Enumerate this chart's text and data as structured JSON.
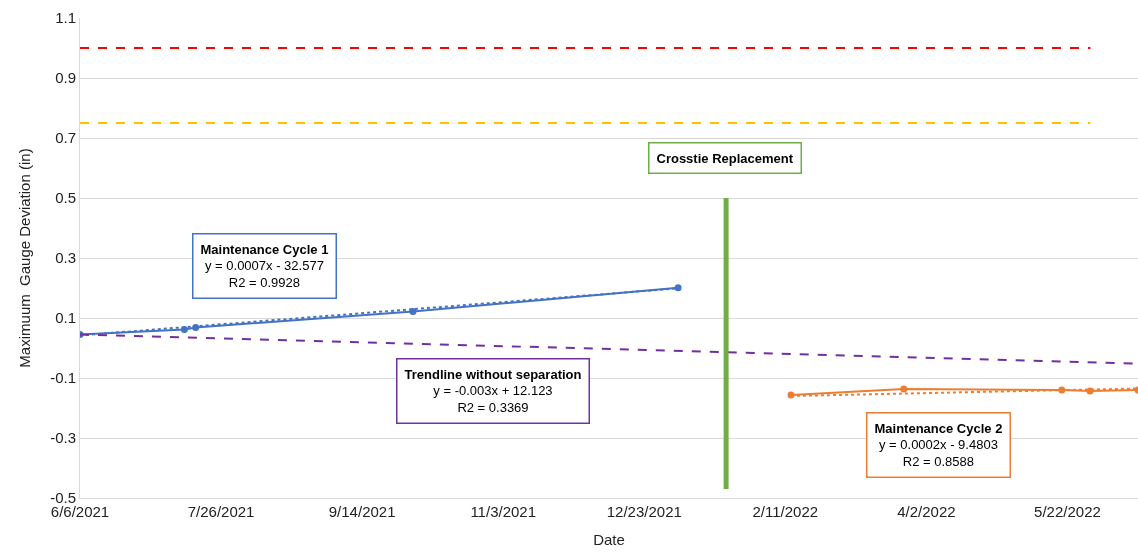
{
  "chart_data": {
    "type": "line",
    "xlabel": "Date",
    "ylabel": "Maximuum  Gauge Deviation (in)",
    "xlim": [
      "2021-06-06",
      "2022-06-16"
    ],
    "xticks": [
      {
        "value": "2021-06-06",
        "label": "6/6/2021"
      },
      {
        "value": "2021-07-26",
        "label": "7/26/2021"
      },
      {
        "value": "2021-09-14",
        "label": "9/14/2021"
      },
      {
        "value": "2021-11-03",
        "label": "11/3/2021"
      },
      {
        "value": "2021-12-23",
        "label": "12/23/2021"
      },
      {
        "value": "2022-02-11",
        "label": "2/11/2022"
      },
      {
        "value": "2022-04-02",
        "label": "4/2/2022"
      },
      {
        "value": "2022-05-22",
        "label": "5/22/2022"
      }
    ],
    "ylim": [
      -0.5,
      1.1
    ],
    "yticks": [
      -0.5,
      -0.3,
      -0.1,
      0.1,
      0.3,
      0.5,
      0.7,
      0.9,
      1.1
    ],
    "grid": "y",
    "series": [
      {
        "color": "#4472c4",
        "marker": "circle",
        "line_style": "solid",
        "x": [
          "2021-06-06",
          "2021-07-13",
          "2021-07-17",
          "2021-10-02",
          "2022-01-04"
        ],
        "values": [
          0.045,
          0.062,
          0.068,
          0.122,
          0.201
        ]
      },
      {
        "color": "#ed7d31",
        "marker": "circle",
        "line_style": "solid",
        "x": [
          "2022-02-13",
          "2022-03-25",
          "2022-05-20",
          "2022-05-30",
          "2022-06-16"
        ],
        "values": [
          -0.157,
          -0.137,
          -0.14,
          -0.143,
          -0.14
        ]
      },
      {
        "color": "#4472c4",
        "marker": "none",
        "line_style": "dotted",
        "x": [
          "2021-06-06",
          "2022-01-04"
        ],
        "values": [
          0.042,
          0.199
        ]
      },
      {
        "color": "#ed7d31",
        "marker": "none",
        "line_style": "dotted",
        "x": [
          "2022-02-13",
          "2022-06-16"
        ],
        "values": [
          -0.16,
          -0.135
        ]
      },
      {
        "color": "#7030a0",
        "marker": "none",
        "line_style": "dashed",
        "x": [
          "2021-06-06",
          "2022-06-16"
        ],
        "values": [
          0.045,
          -0.052
        ]
      },
      {
        "color": "#70ad47",
        "marker": "none",
        "line_style": "solid",
        "x": [
          "2022-01-21",
          "2022-01-21"
        ],
        "values": [
          -0.47,
          0.5
        ]
      }
    ],
    "ref_lines": [
      {
        "axis": "y",
        "value": 1.0,
        "color": "#ff0000",
        "line_style": "dashed"
      },
      {
        "axis": "y",
        "value": 0.75,
        "color": "#ffc000",
        "line_style": "dashed"
      }
    ],
    "annotations": [
      "Maintenance Cycle 1\ny = 0.0007x - 32.577\nR2 = 0.9928",
      "Maintenance Cycle 2\ny = 0.0002x - 9.4803\nR2 = 0.8588",
      "Trendline without separation\ny = -0.003x + 12.123\nR2 = 0.3369",
      "Crosstie Replacement"
    ]
  }
}
